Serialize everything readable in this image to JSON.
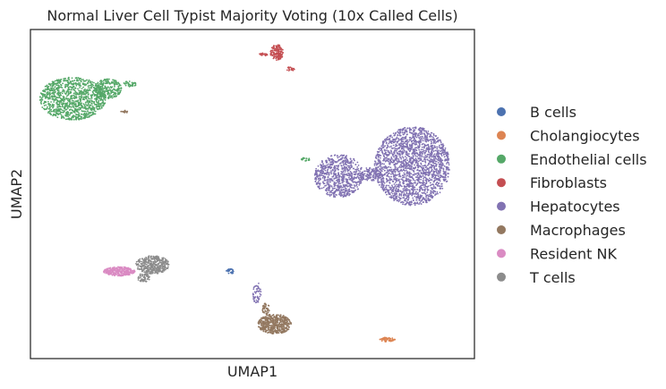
{
  "chart_data": {
    "type": "scatter",
    "title": "Normal Liver Cell Typist Majority Voting (10x Called Cells)",
    "xlabel": "UMAP1",
    "ylabel": "UMAP2",
    "xlim": [
      0,
      100
    ],
    "ylim": [
      0,
      100
    ],
    "xticks": [],
    "yticks": [],
    "grid": false,
    "legend_position": "right",
    "series": [
      {
        "name": "B cells",
        "color": "#4c72b0",
        "clusters": [
          {
            "cx": 45.0,
            "cy": 26.5,
            "rx": 0.9,
            "ry": 0.8,
            "n": 30
          }
        ]
      },
      {
        "name": "Cholangiocytes",
        "color": "#dd8452",
        "clusters": [
          {
            "cx": 80.5,
            "cy": 5.8,
            "rx": 1.8,
            "ry": 0.7,
            "n": 60
          }
        ]
      },
      {
        "name": "Endothelial cells",
        "color": "#55a868",
        "clusters": [
          {
            "cx": 9.5,
            "cy": 79.0,
            "rx": 7.5,
            "ry": 6.5,
            "n": 1100
          },
          {
            "cx": 17.5,
            "cy": 82.0,
            "rx": 3.0,
            "ry": 3.0,
            "n": 250
          },
          {
            "cx": 22.5,
            "cy": 83.5,
            "rx": 1.5,
            "ry": 0.9,
            "n": 35
          },
          {
            "cx": 62.0,
            "cy": 60.5,
            "rx": 1.0,
            "ry": 0.6,
            "n": 25
          }
        ]
      },
      {
        "name": "Fibroblasts",
        "color": "#c44e52",
        "clusters": [
          {
            "cx": 55.5,
            "cy": 93.0,
            "rx": 1.5,
            "ry": 2.4,
            "n": 140
          },
          {
            "cx": 52.5,
            "cy": 92.5,
            "rx": 1.0,
            "ry": 0.5,
            "n": 20
          },
          {
            "cx": 58.5,
            "cy": 88.0,
            "rx": 1.0,
            "ry": 0.6,
            "n": 20
          }
        ]
      },
      {
        "name": "Hepatocytes",
        "color": "#8172b2",
        "clusters": [
          {
            "cx": 86.0,
            "cy": 58.5,
            "rx": 8.5,
            "ry": 12.0,
            "n": 2000
          },
          {
            "cx": 69.5,
            "cy": 55.5,
            "rx": 5.5,
            "ry": 6.5,
            "n": 700
          },
          {
            "cx": 76.5,
            "cy": 56.0,
            "rx": 2.5,
            "ry": 2.0,
            "n": 120
          },
          {
            "cx": 51.0,
            "cy": 20.0,
            "rx": 1.0,
            "ry": 3.2,
            "n": 50
          }
        ]
      },
      {
        "name": "Macrophages",
        "color": "#937860",
        "clusters": [
          {
            "cx": 55.0,
            "cy": 10.5,
            "rx": 3.8,
            "ry": 3.0,
            "n": 500
          },
          {
            "cx": 53.0,
            "cy": 15.0,
            "rx": 0.9,
            "ry": 1.8,
            "n": 40
          },
          {
            "cx": 21.0,
            "cy": 75.0,
            "rx": 0.9,
            "ry": 0.5,
            "n": 15
          }
        ]
      },
      {
        "name": "Resident NK",
        "color": "#da8bc3",
        "clusters": [
          {
            "cx": 20.0,
            "cy": 26.5,
            "rx": 3.5,
            "ry": 1.4,
            "n": 320
          }
        ]
      },
      {
        "name": "T cells",
        "color": "#8c8c8c",
        "clusters": [
          {
            "cx": 27.5,
            "cy": 28.5,
            "rx": 3.8,
            "ry": 2.8,
            "n": 380
          },
          {
            "cx": 25.5,
            "cy": 24.5,
            "rx": 1.4,
            "ry": 1.4,
            "n": 60
          }
        ]
      }
    ]
  }
}
